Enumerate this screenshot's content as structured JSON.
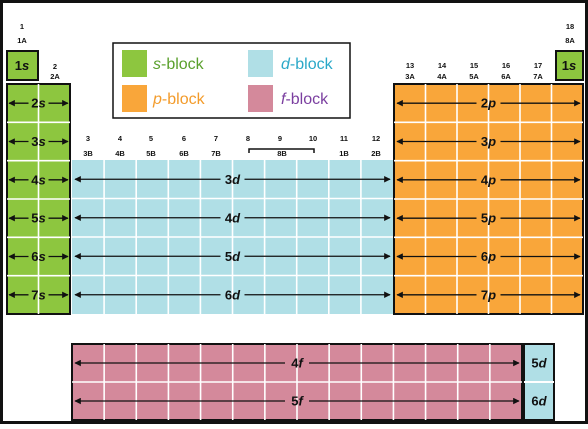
{
  "colors": {
    "s_block": "#8dc63f",
    "p_block": "#f9a63a",
    "d_block": "#b0dfe6",
    "f_block": "#d4899b",
    "grid_line": "#ffffff",
    "border": "#111111"
  },
  "legend": {
    "s": {
      "letter": "s",
      "word": "-block",
      "text_color": "#5aa02c"
    },
    "p": {
      "letter": "p",
      "word": "-block",
      "text_color": "#f39b2a"
    },
    "d": {
      "letter": "d",
      "word": "-block",
      "text_color": "#2aa8c8"
    },
    "f": {
      "letter": "f",
      "word": "-block",
      "text_color": "#7b3fa0"
    }
  },
  "groups": {
    "g1_num": "1",
    "g1_letter": "1A",
    "g2_num": "2",
    "g2_letter": "2A",
    "g3": "3",
    "g4": "4",
    "g5": "5",
    "g6": "6",
    "g7": "7",
    "g8": "8",
    "g9": "9",
    "g10": "10",
    "g11": "11",
    "g12": "12",
    "g3b": "3B",
    "g4b": "4B",
    "g5b": "5B",
    "g6b": "6B",
    "g7b": "7B",
    "g8b": "8B",
    "g1b": "1B",
    "g2b": "2B",
    "g13": "13",
    "g14": "14",
    "g15": "15",
    "g16": "16",
    "g17": "17",
    "g3a": "3A",
    "g4a": "4A",
    "g5a": "5A",
    "g6a": "6A",
    "g7a": "7A",
    "g18_num": "18",
    "g18_letter": "8A"
  },
  "labels": {
    "s1_left": {
      "n": "1",
      "l": "s"
    },
    "s1_right": {
      "n": "1",
      "l": "s"
    },
    "s_rows": [
      {
        "n": "2",
        "l": "s"
      },
      {
        "n": "3",
        "l": "s"
      },
      {
        "n": "4",
        "l": "s"
      },
      {
        "n": "5",
        "l": "s"
      },
      {
        "n": "6",
        "l": "s"
      },
      {
        "n": "7",
        "l": "s"
      }
    ],
    "p_rows": [
      {
        "n": "2",
        "l": "p"
      },
      {
        "n": "3",
        "l": "p"
      },
      {
        "n": "4",
        "l": "p"
      },
      {
        "n": "5",
        "l": "p"
      },
      {
        "n": "6",
        "l": "p"
      },
      {
        "n": "7",
        "l": "p"
      }
    ],
    "d_rows": [
      {
        "n": "3",
        "l": "d"
      },
      {
        "n": "4",
        "l": "d"
      },
      {
        "n": "5",
        "l": "d"
      },
      {
        "n": "6",
        "l": "d"
      }
    ],
    "f_rows": [
      {
        "n": "4",
        "l": "f"
      },
      {
        "n": "5",
        "l": "f"
      }
    ],
    "d_side": [
      {
        "n": "5",
        "l": "d"
      },
      {
        "n": "6",
        "l": "d"
      }
    ]
  }
}
